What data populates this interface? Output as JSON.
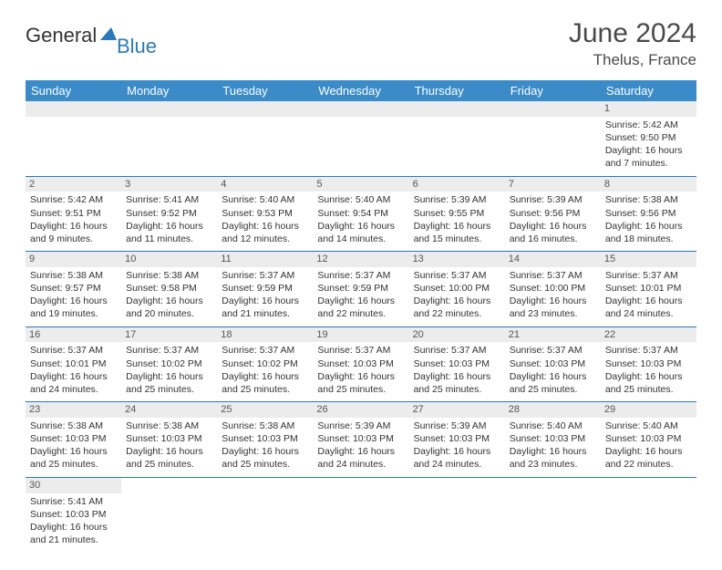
{
  "logo": {
    "text1": "General",
    "text2": "Blue"
  },
  "title": "June 2024",
  "location": "Thelus, France",
  "headerColor": "#3b8bc9",
  "dayHeaders": [
    "Sunday",
    "Monday",
    "Tuesday",
    "Wednesday",
    "Thursday",
    "Friday",
    "Saturday"
  ],
  "weeks": [
    [
      null,
      null,
      null,
      null,
      null,
      null,
      {
        "n": "1",
        "sr": "Sunrise: 5:42 AM",
        "ss": "Sunset: 9:50 PM",
        "dl": "Daylight: 16 hours and 7 minutes."
      }
    ],
    [
      {
        "n": "2",
        "sr": "Sunrise: 5:42 AM",
        "ss": "Sunset: 9:51 PM",
        "dl": "Daylight: 16 hours and 9 minutes."
      },
      {
        "n": "3",
        "sr": "Sunrise: 5:41 AM",
        "ss": "Sunset: 9:52 PM",
        "dl": "Daylight: 16 hours and 11 minutes."
      },
      {
        "n": "4",
        "sr": "Sunrise: 5:40 AM",
        "ss": "Sunset: 9:53 PM",
        "dl": "Daylight: 16 hours and 12 minutes."
      },
      {
        "n": "5",
        "sr": "Sunrise: 5:40 AM",
        "ss": "Sunset: 9:54 PM",
        "dl": "Daylight: 16 hours and 14 minutes."
      },
      {
        "n": "6",
        "sr": "Sunrise: 5:39 AM",
        "ss": "Sunset: 9:55 PM",
        "dl": "Daylight: 16 hours and 15 minutes."
      },
      {
        "n": "7",
        "sr": "Sunrise: 5:39 AM",
        "ss": "Sunset: 9:56 PM",
        "dl": "Daylight: 16 hours and 16 minutes."
      },
      {
        "n": "8",
        "sr": "Sunrise: 5:38 AM",
        "ss": "Sunset: 9:56 PM",
        "dl": "Daylight: 16 hours and 18 minutes."
      }
    ],
    [
      {
        "n": "9",
        "sr": "Sunrise: 5:38 AM",
        "ss": "Sunset: 9:57 PM",
        "dl": "Daylight: 16 hours and 19 minutes."
      },
      {
        "n": "10",
        "sr": "Sunrise: 5:38 AM",
        "ss": "Sunset: 9:58 PM",
        "dl": "Daylight: 16 hours and 20 minutes."
      },
      {
        "n": "11",
        "sr": "Sunrise: 5:37 AM",
        "ss": "Sunset: 9:59 PM",
        "dl": "Daylight: 16 hours and 21 minutes."
      },
      {
        "n": "12",
        "sr": "Sunrise: 5:37 AM",
        "ss": "Sunset: 9:59 PM",
        "dl": "Daylight: 16 hours and 22 minutes."
      },
      {
        "n": "13",
        "sr": "Sunrise: 5:37 AM",
        "ss": "Sunset: 10:00 PM",
        "dl": "Daylight: 16 hours and 22 minutes."
      },
      {
        "n": "14",
        "sr": "Sunrise: 5:37 AM",
        "ss": "Sunset: 10:00 PM",
        "dl": "Daylight: 16 hours and 23 minutes."
      },
      {
        "n": "15",
        "sr": "Sunrise: 5:37 AM",
        "ss": "Sunset: 10:01 PM",
        "dl": "Daylight: 16 hours and 24 minutes."
      }
    ],
    [
      {
        "n": "16",
        "sr": "Sunrise: 5:37 AM",
        "ss": "Sunset: 10:01 PM",
        "dl": "Daylight: 16 hours and 24 minutes."
      },
      {
        "n": "17",
        "sr": "Sunrise: 5:37 AM",
        "ss": "Sunset: 10:02 PM",
        "dl": "Daylight: 16 hours and 25 minutes."
      },
      {
        "n": "18",
        "sr": "Sunrise: 5:37 AM",
        "ss": "Sunset: 10:02 PM",
        "dl": "Daylight: 16 hours and 25 minutes."
      },
      {
        "n": "19",
        "sr": "Sunrise: 5:37 AM",
        "ss": "Sunset: 10:03 PM",
        "dl": "Daylight: 16 hours and 25 minutes."
      },
      {
        "n": "20",
        "sr": "Sunrise: 5:37 AM",
        "ss": "Sunset: 10:03 PM",
        "dl": "Daylight: 16 hours and 25 minutes."
      },
      {
        "n": "21",
        "sr": "Sunrise: 5:37 AM",
        "ss": "Sunset: 10:03 PM",
        "dl": "Daylight: 16 hours and 25 minutes."
      },
      {
        "n": "22",
        "sr": "Sunrise: 5:37 AM",
        "ss": "Sunset: 10:03 PM",
        "dl": "Daylight: 16 hours and 25 minutes."
      }
    ],
    [
      {
        "n": "23",
        "sr": "Sunrise: 5:38 AM",
        "ss": "Sunset: 10:03 PM",
        "dl": "Daylight: 16 hours and 25 minutes."
      },
      {
        "n": "24",
        "sr": "Sunrise: 5:38 AM",
        "ss": "Sunset: 10:03 PM",
        "dl": "Daylight: 16 hours and 25 minutes."
      },
      {
        "n": "25",
        "sr": "Sunrise: 5:38 AM",
        "ss": "Sunset: 10:03 PM",
        "dl": "Daylight: 16 hours and 25 minutes."
      },
      {
        "n": "26",
        "sr": "Sunrise: 5:39 AM",
        "ss": "Sunset: 10:03 PM",
        "dl": "Daylight: 16 hours and 24 minutes."
      },
      {
        "n": "27",
        "sr": "Sunrise: 5:39 AM",
        "ss": "Sunset: 10:03 PM",
        "dl": "Daylight: 16 hours and 24 minutes."
      },
      {
        "n": "28",
        "sr": "Sunrise: 5:40 AM",
        "ss": "Sunset: 10:03 PM",
        "dl": "Daylight: 16 hours and 23 minutes."
      },
      {
        "n": "29",
        "sr": "Sunrise: 5:40 AM",
        "ss": "Sunset: 10:03 PM",
        "dl": "Daylight: 16 hours and 22 minutes."
      }
    ],
    [
      {
        "n": "30",
        "sr": "Sunrise: 5:41 AM",
        "ss": "Sunset: 10:03 PM",
        "dl": "Daylight: 16 hours and 21 minutes."
      },
      null,
      null,
      null,
      null,
      null,
      null
    ]
  ]
}
